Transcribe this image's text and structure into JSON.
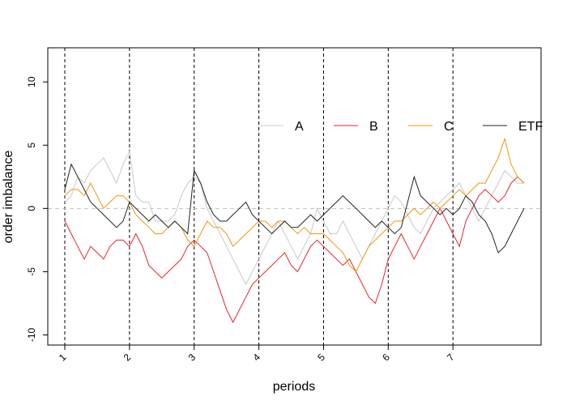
{
  "chart_data": {
    "type": "line",
    "title": "",
    "xlabel": "periods",
    "ylabel": "order imbalance",
    "ylim": [
      -10.8,
      12.7
    ],
    "y_ticks": [
      -10,
      -5,
      0,
      5,
      10
    ],
    "x_range": [
      0.0,
      7.2
    ],
    "x_ticks": [
      0,
      1,
      2,
      3,
      4,
      5,
      6
    ],
    "x_tick_labels": [
      "1",
      "2",
      "3",
      "4",
      "5",
      "6",
      "7"
    ],
    "period_lines": [
      0,
      1,
      2,
      3,
      4,
      5,
      6
    ],
    "zero_line": 0,
    "legend_placement": "top-right",
    "series": [
      {
        "name": "A",
        "color": "#c8c8c8",
        "x": [
          0,
          0.1,
          0.2,
          0.3,
          0.4,
          0.5,
          0.6,
          0.7,
          0.8,
          0.9,
          1.0,
          1.1,
          1.2,
          1.3,
          1.4,
          1.5,
          1.6,
          1.7,
          1.8,
          1.9,
          2.0,
          2.1,
          2.2,
          2.3,
          2.4,
          2.5,
          2.6,
          2.7,
          2.8,
          2.9,
          3.0,
          3.1,
          3.2,
          3.3,
          3.4,
          3.5,
          3.6,
          3.7,
          3.8,
          3.9,
          4.0,
          4.1,
          4.2,
          4.3,
          4.4,
          4.5,
          4.6,
          4.7,
          4.8,
          4.9,
          5.0,
          5.1,
          5.2,
          5.3,
          5.4,
          5.5,
          5.6,
          5.7,
          5.8,
          5.9,
          6.0,
          6.1,
          6.2,
          6.3,
          6.4,
          6.5,
          6.6,
          6.7,
          6.8,
          6.9,
          7.0,
          7.1
        ],
        "y": [
          0.5,
          1.0,
          2.5,
          2.0,
          3.0,
          3.5,
          4.0,
          3.0,
          2.0,
          3.5,
          4.5,
          1.0,
          0.5,
          0.5,
          -1.0,
          -1.0,
          -1.0,
          -0.5,
          1.0,
          2.0,
          2.5,
          2.0,
          0,
          -1.0,
          -2.0,
          -3.0,
          -4.0,
          -5.0,
          -6.0,
          -5.0,
          -4.0,
          -3.0,
          -2.0,
          -1.0,
          -2.0,
          -3.0,
          -4.0,
          -3.0,
          -2.0,
          0,
          -1.0,
          -2.0,
          -2.0,
          -1.0,
          -2.0,
          -3.0,
          -4.0,
          -3.0,
          -2.0,
          -1.0,
          0,
          1.0,
          0.5,
          -0.5,
          -1.5,
          -2.0,
          -1.0,
          0,
          0.5,
          1.0,
          1.5,
          2.0,
          1.0,
          0,
          -1.0,
          0,
          1.0,
          2.0,
          3.0,
          2.5,
          2.0,
          2.0
        ]
      },
      {
        "name": "B",
        "color": "#e8232c",
        "x": [
          0,
          0.1,
          0.2,
          0.3,
          0.4,
          0.5,
          0.6,
          0.7,
          0.8,
          0.9,
          1.0,
          1.1,
          1.2,
          1.3,
          1.4,
          1.5,
          1.6,
          1.7,
          1.8,
          1.9,
          2.0,
          2.1,
          2.2,
          2.3,
          2.4,
          2.5,
          2.6,
          2.7,
          2.8,
          2.9,
          3.0,
          3.1,
          3.2,
          3.3,
          3.4,
          3.5,
          3.6,
          3.7,
          3.8,
          3.9,
          4.0,
          4.1,
          4.2,
          4.3,
          4.4,
          4.5,
          4.6,
          4.7,
          4.8,
          4.9,
          5.0,
          5.1,
          5.2,
          5.3,
          5.4,
          5.5,
          5.6,
          5.7,
          5.8,
          5.9,
          6.0,
          6.1,
          6.2,
          6.3,
          6.4,
          6.5,
          6.6,
          6.7,
          6.8,
          6.9,
          7.0,
          7.1
        ],
        "y": [
          -1.0,
          -2.0,
          -3.0,
          -4.0,
          -3.0,
          -3.5,
          -4.0,
          -3.0,
          -2.5,
          -2.5,
          -3.0,
          -2.0,
          -3.0,
          -4.5,
          -5.0,
          -5.5,
          -5.0,
          -4.5,
          -4.0,
          -3.0,
          -2.5,
          -3.0,
          -3.5,
          -5.0,
          -6.5,
          -8.0,
          -9.0,
          -8.0,
          -7.0,
          -6.0,
          -5.5,
          -5.0,
          -4.5,
          -4.0,
          -3.5,
          -4.5,
          -5.0,
          -4.0,
          -3.0,
          -2.5,
          -3.0,
          -3.5,
          -4.0,
          -4.5,
          -4.0,
          -5.0,
          -6.0,
          -7.0,
          -7.5,
          -6.0,
          -4.0,
          -3.0,
          -2.0,
          -3.0,
          -4.0,
          -3.0,
          -2.0,
          -1.0,
          0,
          -1.0,
          -2.0,
          -3.0,
          -1.0,
          0,
          1.0,
          1.5,
          1.0,
          0.5,
          1.0,
          2.0,
          2.5,
          2.0
        ]
      },
      {
        "name": "C",
        "color": "#f0960a",
        "x": [
          0,
          0.1,
          0.2,
          0.3,
          0.4,
          0.5,
          0.6,
          0.7,
          0.8,
          0.9,
          1.0,
          1.1,
          1.2,
          1.3,
          1.4,
          1.5,
          1.6,
          1.7,
          1.8,
          1.9,
          2.0,
          2.1,
          2.2,
          2.3,
          2.4,
          2.5,
          2.6,
          2.7,
          2.8,
          2.9,
          3.0,
          3.1,
          3.2,
          3.3,
          3.4,
          3.5,
          3.6,
          3.7,
          3.8,
          3.9,
          4.0,
          4.1,
          4.2,
          4.3,
          4.4,
          4.5,
          4.6,
          4.7,
          4.8,
          4.9,
          5.0,
          5.1,
          5.2,
          5.3,
          5.4,
          5.5,
          5.6,
          5.7,
          5.8,
          5.9,
          6.0,
          6.1,
          6.2,
          6.3,
          6.4,
          6.5,
          6.6,
          6.7,
          6.8,
          6.9,
          7.0,
          7.1
        ],
        "y": [
          1.0,
          1.5,
          1.5,
          1.0,
          2.0,
          1.0,
          0,
          0.5,
          1.0,
          1.0,
          0.5,
          -0.5,
          -1.0,
          -1.5,
          -2.0,
          -2.0,
          -1.5,
          -1.0,
          -1.5,
          -2.5,
          -3.0,
          -2.0,
          -1.0,
          -1.5,
          -1.5,
          -2.0,
          -3.0,
          -2.5,
          -2.0,
          -1.5,
          -1.0,
          -1.0,
          -1.5,
          -1.0,
          -1.0,
          -1.5,
          -2.0,
          -1.5,
          -2.0,
          -2.0,
          -2.0,
          -2.5,
          -3.0,
          -3.5,
          -4.5,
          -5.0,
          -4.0,
          -3.0,
          -2.5,
          -2.0,
          -1.5,
          -1.0,
          -1.0,
          -0.5,
          0,
          -0.5,
          0,
          0.5,
          0,
          0.5,
          1.0,
          1.5,
          1.0,
          1.5,
          2.0,
          2.0,
          3.0,
          4.0,
          5.5,
          3.5,
          2.5,
          2.0
        ]
      },
      {
        "name": "ETF",
        "color": "#222222",
        "x": [
          0,
          0.1,
          0.2,
          0.3,
          0.4,
          0.5,
          0.6,
          0.7,
          0.8,
          0.9,
          1.0,
          1.1,
          1.2,
          1.3,
          1.4,
          1.5,
          1.6,
          1.7,
          1.8,
          1.9,
          2.0,
          2.1,
          2.2,
          2.3,
          2.4,
          2.5,
          2.6,
          2.7,
          2.8,
          2.9,
          3.0,
          3.1,
          3.2,
          3.3,
          3.4,
          3.5,
          3.6,
          3.7,
          3.8,
          3.9,
          4.0,
          4.1,
          4.2,
          4.3,
          4.4,
          4.5,
          4.6,
          4.7,
          4.8,
          4.9,
          5.0,
          5.1,
          5.2,
          5.3,
          5.4,
          5.5,
          5.6,
          5.7,
          5.8,
          5.9,
          6.0,
          6.1,
          6.2,
          6.3,
          6.4,
          6.5,
          6.6,
          6.7,
          6.8,
          6.9,
          7.0,
          7.1
        ],
        "y": [
          1.5,
          3.5,
          2.5,
          1.5,
          0.5,
          0,
          -0.5,
          -1.0,
          -1.5,
          -1.0,
          0.5,
          0,
          -0.5,
          -1.0,
          -0.5,
          -1.0,
          -1.5,
          -1.0,
          -1.5,
          -2.0,
          3.0,
          2.0,
          0.5,
          -0.5,
          -1.0,
          -1.0,
          -0.5,
          0,
          0.5,
          -0.5,
          -1.0,
          -1.5,
          -2.0,
          -1.5,
          -1.0,
          -1.5,
          -1.5,
          -1.0,
          -0.5,
          -1.0,
          -0.5,
          0,
          0.5,
          1.0,
          0.5,
          0,
          -0.5,
          -1.0,
          -1.5,
          -1.0,
          -1.5,
          -2.0,
          -1.5,
          0.5,
          2.5,
          1.0,
          0.5,
          0,
          -0.5,
          0,
          -0.5,
          0,
          1.0,
          0.5,
          -0.5,
          -1.0,
          -2.0,
          -3.5,
          -3.0,
          -2.0,
          -1.0,
          0
        ]
      }
    ]
  }
}
